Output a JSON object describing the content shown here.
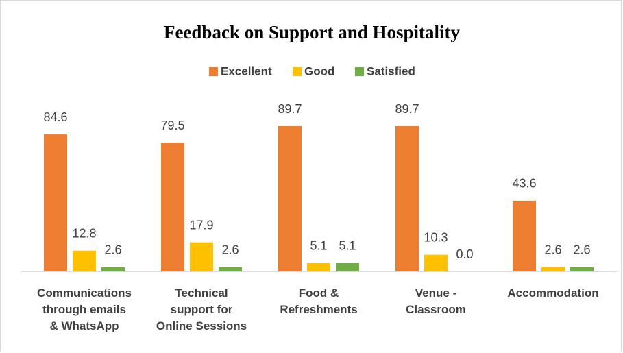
{
  "chart_data": {
    "type": "bar",
    "title": "Feedback on Support and Hospitality",
    "categories": [
      "Communications\nthrough emails\n& WhatsApp",
      "Technical\nsupport for\nOnline Sessions",
      "Food &\nRefreshments",
      "Venue -\nClassroom",
      "Accommodation"
    ],
    "series": [
      {
        "name": "Excellent",
        "color": "#ed7d31",
        "values": [
          84.6,
          79.5,
          89.7,
          89.7,
          43.6
        ],
        "value_labels": [
          "84.6",
          "79.5",
          "89.7",
          "89.7",
          "43.6"
        ]
      },
      {
        "name": "Good",
        "color": "#ffc000",
        "values": [
          12.8,
          17.9,
          5.1,
          10.3,
          2.6
        ],
        "value_labels": [
          "12.8",
          "17.9",
          "5.1",
          "10.3",
          "2.6"
        ]
      },
      {
        "name": "Satisfied",
        "color": "#70ad47",
        "values": [
          2.6,
          2.6,
          5.1,
          0.0,
          2.6
        ],
        "value_labels": [
          "2.6",
          "2.6",
          "5.1",
          "0.0",
          "2.6"
        ]
      }
    ],
    "legend": "top"
  }
}
